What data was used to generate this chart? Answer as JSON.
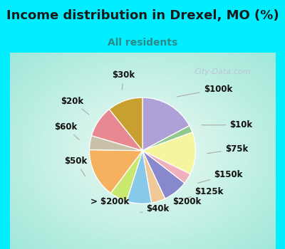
{
  "title": "Income distribution in Drexel, MO (%)",
  "subtitle": "All residents",
  "title_color": "#1a1a1a",
  "subtitle_color": "#2a8a8a",
  "bg_cyan": "#00eeff",
  "bg_chart_edge": "#a8e8d8",
  "bg_chart_center": "#f0faf5",
  "watermark": "City-Data.com",
  "labels": [
    "$100k",
    "$10k",
    "$75k",
    "$150k",
    "$125k",
    "$200k",
    "$40k",
    "> $200k",
    "$50k",
    "$60k",
    "$20k",
    "$30k"
  ],
  "values": [
    16,
    2,
    12,
    3,
    7,
    4,
    7,
    5,
    14,
    4,
    9,
    10
  ],
  "colors": [
    "#b0a0d8",
    "#90c890",
    "#f5f5a0",
    "#f0b0bc",
    "#8888cc",
    "#f0c898",
    "#88c8e8",
    "#c8e870",
    "#f5b060",
    "#c8c0a8",
    "#e88890",
    "#c8a030"
  ],
  "title_fontsize": 13,
  "subtitle_fontsize": 10,
  "label_fontsize": 8.5,
  "figsize": [
    4.0,
    3.5
  ],
  "dpi": 100
}
